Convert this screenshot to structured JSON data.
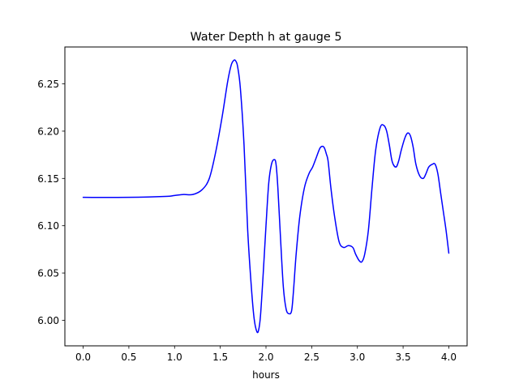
{
  "chart_data": {
    "type": "line",
    "title": "Water Depth h at gauge 5",
    "xlabel": "hours",
    "ylabel": "",
    "xlim": [
      -0.2,
      4.2
    ],
    "ylim": [
      5.973,
      6.289
    ],
    "x_ticks": [
      0.0,
      0.5,
      1.0,
      1.5,
      2.0,
      2.5,
      3.0,
      3.5,
      4.0
    ],
    "x_tick_labels": [
      "0.0",
      "0.5",
      "1.0",
      "1.5",
      "2.0",
      "2.5",
      "3.0",
      "3.5",
      "4.0"
    ],
    "y_ticks": [
      6.0,
      6.05,
      6.1,
      6.15,
      6.2,
      6.25
    ],
    "y_tick_labels": [
      "6.00",
      "6.05",
      "6.10",
      "6.15",
      "6.20",
      "6.25"
    ],
    "grid": false,
    "legend": "none",
    "series": [
      {
        "color": "#0000ff",
        "x": [
          0.0,
          0.5,
          0.9,
          1.0,
          1.1,
          1.2,
          1.3,
          1.38,
          1.45,
          1.52,
          1.58,
          1.62,
          1.65,
          1.67,
          1.69,
          1.72,
          1.76,
          1.8,
          1.84,
          1.87,
          1.9,
          1.92,
          1.94,
          1.97,
          2.0,
          2.03,
          2.06,
          2.09,
          2.11,
          2.13,
          2.16,
          2.19,
          2.22,
          2.25,
          2.28,
          2.3,
          2.33,
          2.37,
          2.42,
          2.47,
          2.51,
          2.55,
          2.59,
          2.62,
          2.64,
          2.66,
          2.68,
          2.71,
          2.75,
          2.8,
          2.85,
          2.9,
          2.95,
          2.98,
          3.02,
          3.05,
          3.08,
          3.12,
          3.16,
          3.2,
          3.25,
          3.29,
          3.32,
          3.35,
          3.38,
          3.42,
          3.45,
          3.48,
          3.52,
          3.55,
          3.58,
          3.61,
          3.64,
          3.68,
          3.72,
          3.75,
          3.78,
          3.82,
          3.85,
          3.88,
          3.91,
          3.94,
          3.97,
          4.0
        ],
        "values": [
          6.13,
          6.13,
          6.131,
          6.132,
          6.133,
          6.133,
          6.138,
          6.15,
          6.178,
          6.215,
          6.252,
          6.27,
          6.275,
          6.274,
          6.268,
          6.245,
          6.185,
          6.095,
          6.035,
          6.002,
          5.988,
          5.99,
          6.005,
          6.05,
          6.1,
          6.145,
          6.165,
          6.17,
          6.165,
          6.14,
          6.085,
          6.035,
          6.012,
          6.007,
          6.01,
          6.03,
          6.07,
          6.11,
          6.14,
          6.155,
          6.162,
          6.172,
          6.182,
          6.184,
          6.182,
          6.176,
          6.168,
          6.14,
          6.11,
          6.083,
          6.077,
          6.079,
          6.077,
          6.07,
          6.063,
          6.062,
          6.07,
          6.095,
          6.14,
          6.18,
          6.204,
          6.206,
          6.2,
          6.185,
          6.168,
          6.162,
          6.168,
          6.18,
          6.193,
          6.198,
          6.195,
          6.183,
          6.165,
          6.153,
          6.15,
          6.155,
          6.162,
          6.165,
          6.165,
          6.155,
          6.135,
          6.115,
          6.095,
          6.071
        ]
      }
    ]
  }
}
